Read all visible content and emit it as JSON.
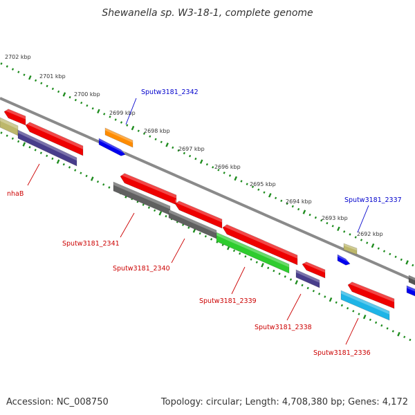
{
  "title": "Shewanella sp. W3-18-1, complete genome",
  "footer": {
    "accession": "Accession: NC_008750",
    "summary": "Topology: circular; Length: 4,708,380 bp; Genes: 4,172"
  },
  "colors": {
    "backbone": "#8a8a8a",
    "tick_dots": "#1e8c1e",
    "label_forward": "#0000cc",
    "label_reverse": "#cc0000"
  },
  "ticks": [
    {
      "label": "2702 kbp"
    },
    {
      "label": "2701 kbp"
    },
    {
      "label": "2700 kbp"
    },
    {
      "label": "2699 kbp"
    },
    {
      "label": "2698 kbp"
    },
    {
      "label": "2697 kbp"
    },
    {
      "label": "2696 kbp"
    },
    {
      "label": "2695 kbp"
    },
    {
      "label": "2694 kbp"
    },
    {
      "label": "2693 kbp"
    },
    {
      "label": "2692 kbp"
    }
  ],
  "gene_labels": [
    {
      "name": "Sputw3181_2342",
      "strand": "forward"
    },
    {
      "name": "Sputw3181_2337",
      "strand": "forward"
    },
    {
      "name": "nhaB",
      "strand": "reverse"
    },
    {
      "name": "Sputw3181_2341",
      "strand": "reverse"
    },
    {
      "name": "Sputw3181_2340",
      "strand": "reverse"
    },
    {
      "name": "Sputw3181_2339",
      "strand": "reverse"
    },
    {
      "name": "Sputw3181_2338",
      "strand": "reverse"
    },
    {
      "name": "Sputw3181_2336",
      "strand": "reverse"
    }
  ]
}
